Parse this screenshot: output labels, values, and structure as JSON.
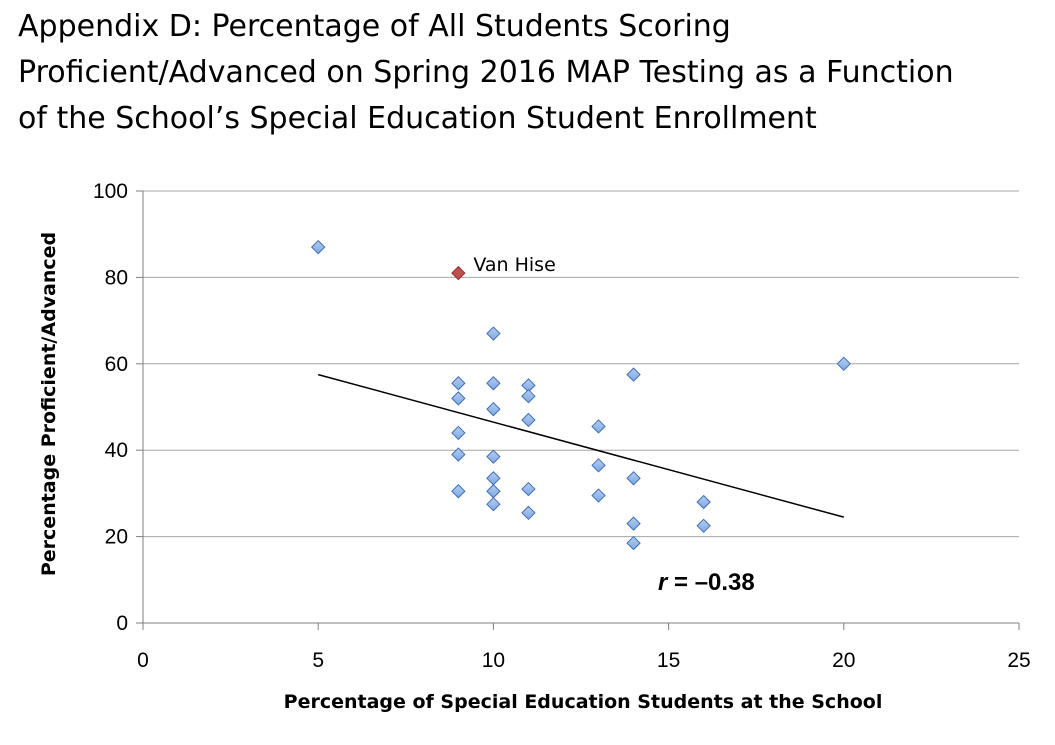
{
  "title_lines": [
    "Appendix D: Percentage of All Students Scoring",
    "Proficient/Advanced on Spring 2016 MAP Testing as a Function",
    "of the School’s Special Education Student Enrollment"
  ],
  "chart_data": {
    "type": "scatter",
    "xlabel": "Percentage of Special Education Students at the School",
    "ylabel": "Percentage Proficient/Advanced",
    "xlim": [
      0,
      25
    ],
    "ylim": [
      0,
      100
    ],
    "xticks": [
      "0",
      "5",
      "10",
      "15",
      "20",
      "25"
    ],
    "yticks": [
      "0",
      "20",
      "40",
      "60",
      "80",
      "100"
    ],
    "grid": "horizontal",
    "legend": "none",
    "marker_color": "#7fa8e0",
    "marker_edge": "#3d6fb8",
    "highlight_color": "#c0504d",
    "points": [
      {
        "x": 5,
        "y": 87
      },
      {
        "x": 9,
        "y": 81,
        "label": "Van Hise",
        "highlight": true
      },
      {
        "x": 9,
        "y": 55.5
      },
      {
        "x": 9,
        "y": 52
      },
      {
        "x": 9,
        "y": 44
      },
      {
        "x": 9,
        "y": 39
      },
      {
        "x": 9,
        "y": 30.5
      },
      {
        "x": 10,
        "y": 67
      },
      {
        "x": 10,
        "y": 55.5
      },
      {
        "x": 10,
        "y": 49.5
      },
      {
        "x": 10,
        "y": 38.5
      },
      {
        "x": 10,
        "y": 33.5
      },
      {
        "x": 10,
        "y": 30.5
      },
      {
        "x": 10,
        "y": 27.5
      },
      {
        "x": 11,
        "y": 55
      },
      {
        "x": 11,
        "y": 52.5
      },
      {
        "x": 11,
        "y": 47
      },
      {
        "x": 11,
        "y": 31
      },
      {
        "x": 11,
        "y": 25.5
      },
      {
        "x": 13,
        "y": 45.5
      },
      {
        "x": 13,
        "y": 36.5
      },
      {
        "x": 13,
        "y": 29.5
      },
      {
        "x": 14,
        "y": 57.5
      },
      {
        "x": 14,
        "y": 33.5
      },
      {
        "x": 14,
        "y": 23
      },
      {
        "x": 14,
        "y": 18.5
      },
      {
        "x": 16,
        "y": 28
      },
      {
        "x": 16,
        "y": 22.5
      },
      {
        "x": 20,
        "y": 60
      }
    ],
    "trendline": {
      "x": [
        5,
        20
      ],
      "y": [
        57.5,
        24.5
      ]
    },
    "annotation": {
      "prefix": "r",
      "text": " = –0.38"
    }
  }
}
